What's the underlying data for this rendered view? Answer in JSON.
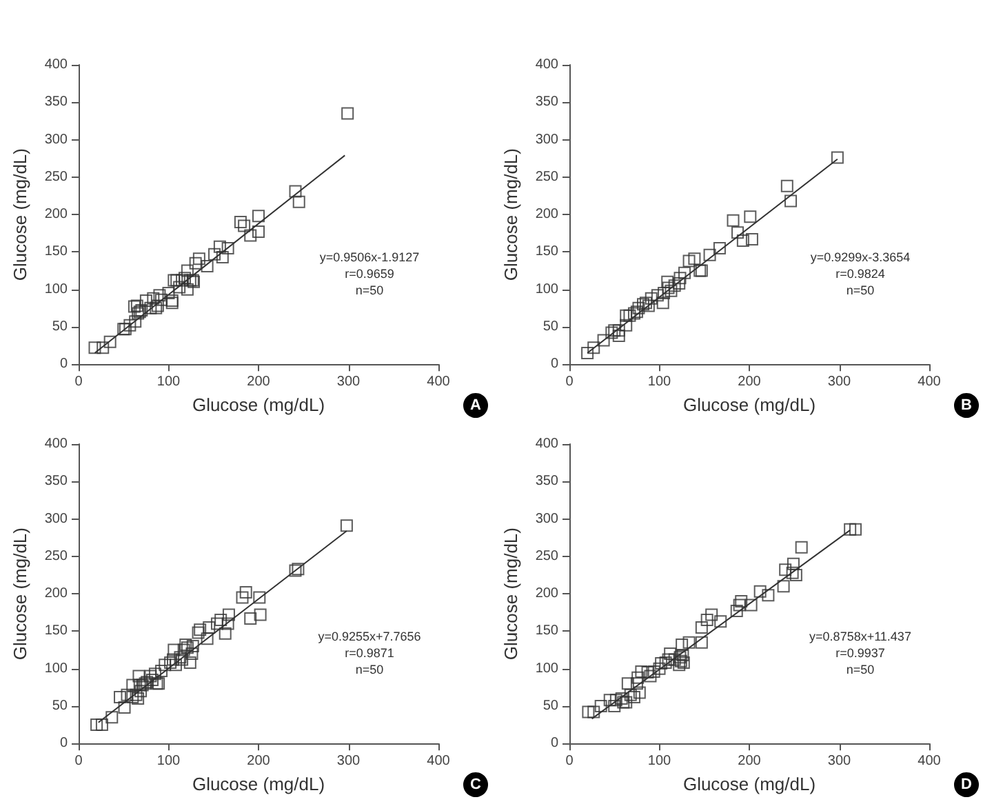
{
  "chart_data": [
    {
      "type": "scatter",
      "xlabel": "Glucose (mg/dL)",
      "ylabel": "Glucose (mg/dL)",
      "annotations": [
        "y=0.9506x-1.9127",
        "r=0.9659",
        "n=50",
        "A"
      ],
      "xlim": [
        0,
        400
      ],
      "xticks": [
        0,
        100,
        200,
        300,
        400
      ],
      "ylim": [
        0,
        400
      ],
      "yticks": [
        0,
        50,
        100,
        150,
        200,
        250,
        300,
        350,
        400
      ],
      "grid": false,
      "marker": "square",
      "series": [
        {
          "color": "#333333",
          "x": [
            18,
            27,
            35,
            50,
            52,
            57,
            63,
            62,
            65,
            66,
            68,
            70,
            75,
            80,
            83,
            86,
            88,
            90,
            92,
            100,
            104,
            104,
            106,
            109,
            112,
            115,
            118,
            121,
            121,
            124,
            127,
            128,
            130,
            134,
            143,
            151,
            157,
            160,
            166,
            180,
            184,
            191,
            200,
            200,
            241,
            245,
            299
          ],
          "values": [
            22,
            22,
            30,
            47,
            47,
            52,
            57,
            77,
            78,
            68,
            70,
            72,
            85,
            75,
            88,
            75,
            78,
            92,
            86,
            95,
            85,
            82,
            112,
            112,
            103,
            112,
            115,
            125,
            100,
            112,
            112,
            110,
            135,
            141,
            131,
            147,
            157,
            143,
            155,
            190,
            185,
            172,
            198,
            177,
            231,
            217,
            335
          ]
        },
        {
          "type": "line",
          "color": "#333333",
          "marker": "none",
          "x": [
            18,
            296
          ],
          "values": [
            15,
            279
          ]
        }
      ]
    },
    {
      "type": "scatter",
      "xlabel": "Glucose (mg/dL)",
      "ylabel": "Glucose (mg/dL)",
      "annotations": [
        "y=0.9299x-3.3654",
        "r=0.9824",
        "n=50",
        "B"
      ],
      "xlim": [
        0,
        400
      ],
      "xticks": [
        0,
        100,
        200,
        300,
        400
      ],
      "ylim": [
        0,
        400
      ],
      "yticks": [
        0,
        50,
        100,
        150,
        200,
        250,
        300,
        350,
        400
      ],
      "grid": false,
      "marker": "square",
      "series": [
        {
          "color": "#333333",
          "x": [
            20,
            27,
            38,
            47,
            50,
            55,
            55,
            63,
            63,
            67,
            72,
            75,
            77,
            82,
            85,
            88,
            91,
            98,
            104,
            105,
            109,
            110,
            113,
            117,
            122,
            123,
            128,
            133,
            139,
            145,
            147,
            156,
            167,
            182,
            187,
            193,
            201,
            203,
            242,
            246,
            298
          ],
          "values": [
            15,
            22,
            32,
            42,
            45,
            45,
            38,
            52,
            65,
            65,
            68,
            70,
            75,
            80,
            82,
            78,
            88,
            92,
            82,
            95,
            110,
            102,
            98,
            105,
            108,
            115,
            122,
            138,
            141,
            125,
            125,
            146,
            155,
            192,
            176,
            165,
            197,
            167,
            238,
            218,
            276
          ]
        },
        {
          "type": "line",
          "color": "#333333",
          "marker": "none",
          "x": [
            20,
            298
          ],
          "values": [
            15,
            274
          ]
        }
      ]
    },
    {
      "type": "scatter",
      "xlabel": "Glucose (mg/dL)",
      "ylabel": "Glucose (mg/dL)",
      "annotations": [
        "y=0.9255x+7.7656",
        "r=0.9871",
        "n=50",
        "C"
      ],
      "xlim": [
        0,
        400
      ],
      "xticks": [
        0,
        100,
        200,
        300,
        400
      ],
      "ylim": [
        0,
        400
      ],
      "yticks": [
        0,
        50,
        100,
        150,
        200,
        250,
        300,
        350,
        400
      ],
      "grid": false,
      "marker": "square",
      "series": [
        {
          "color": "#333333",
          "x": [
            20,
            26,
            37,
            46,
            51,
            54,
            60,
            60,
            64,
            66,
            67,
            68,
            69,
            71,
            74,
            76,
            80,
            82,
            85,
            87,
            89,
            92,
            96,
            102,
            105,
            106,
            108,
            113,
            115,
            117,
            119,
            121,
            124,
            126,
            127,
            133,
            135,
            143,
            145,
            154,
            158,
            163,
            166,
            167,
            182,
            186,
            191,
            201,
            202,
            241,
            244,
            298
          ],
          "values": [
            25,
            25,
            35,
            62,
            48,
            65,
            78,
            62,
            65,
            60,
            90,
            78,
            70,
            78,
            80,
            82,
            90,
            85,
            93,
            80,
            80,
            97,
            105,
            108,
            112,
            125,
            105,
            115,
            112,
            125,
            132,
            128,
            108,
            120,
            130,
            148,
            152,
            140,
            155,
            160,
            165,
            147,
            160,
            172,
            195,
            202,
            167,
            195,
            172,
            231,
            233,
            291
          ]
        },
        {
          "type": "line",
          "color": "#333333",
          "marker": "none",
          "x": [
            22,
            298
          ],
          "values": [
            28,
            284
          ]
        }
      ]
    },
    {
      "type": "scatter",
      "xlabel": "Glucose (mg/dL)",
      "ylabel": "Glucose (mg/dL)",
      "annotations": [
        "y=0.8758x+11.437",
        "r=0.9937",
        "n=50",
        "D"
      ],
      "xlim": [
        0,
        400
      ],
      "xticks": [
        0,
        100,
        200,
        300,
        400
      ],
      "ylim": [
        0,
        400
      ],
      "yticks": [
        0,
        50,
        100,
        150,
        200,
        250,
        300,
        350,
        400
      ],
      "grid": false,
      "marker": "square",
      "series": [
        {
          "color": "#333333",
          "x": [
            21,
            27,
            35,
            45,
            50,
            52,
            58,
            60,
            63,
            65,
            68,
            72,
            75,
            76,
            78,
            80,
            87,
            90,
            94,
            100,
            102,
            107,
            110,
            112,
            117,
            122,
            123,
            124,
            125,
            126,
            127,
            133,
            147,
            147,
            153,
            158,
            168,
            186,
            189,
            191,
            202,
            212,
            221,
            238,
            240,
            248,
            249,
            252,
            258,
            312,
            318
          ],
          "values": [
            42,
            42,
            50,
            58,
            50,
            58,
            60,
            55,
            55,
            80,
            65,
            62,
            80,
            88,
            68,
            96,
            95,
            90,
            96,
            100,
            107,
            108,
            112,
            120,
            112,
            105,
            115,
            110,
            132,
            118,
            108,
            135,
            135,
            155,
            165,
            172,
            163,
            177,
            185,
            190,
            185,
            203,
            198,
            210,
            232,
            228,
            240,
            225,
            262,
            286,
            286
          ]
        },
        {
          "type": "line",
          "color": "#333333",
          "marker": "none",
          "x": [
            25,
            312
          ],
          "values": [
            33,
            285
          ]
        }
      ]
    }
  ]
}
